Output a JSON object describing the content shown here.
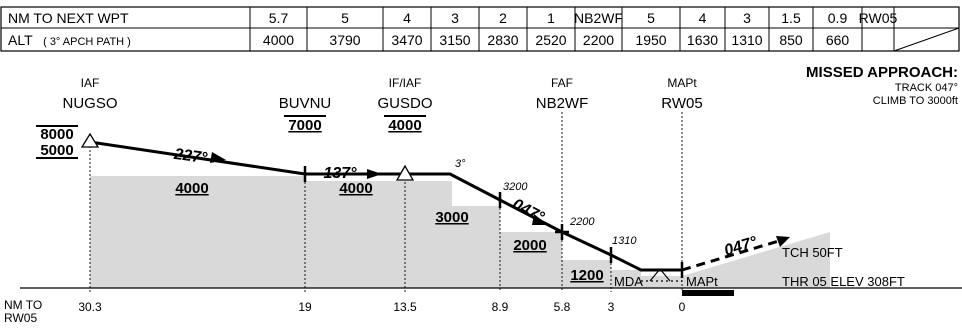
{
  "table": {
    "row1_label": "NM TO NEXT WPT",
    "row1_values": [
      "5.7",
      "5",
      "4",
      "3",
      "2",
      "1",
      "NB2WF",
      "5",
      "4",
      "3",
      "1.5",
      "0.9",
      "RW05"
    ],
    "row2_label": "ALT",
    "row2_sublabel": "( 3° APCH PATH )",
    "row2_values": [
      "4000",
      "3790",
      "3470",
      "3150",
      "2830",
      "2520",
      "2200",
      "1950",
      "1630",
      "1310",
      "850",
      "660",
      ""
    ]
  },
  "missed_approach": {
    "title": "MISSED APPROACH:",
    "line1": "TRACK 047°",
    "line2": "CLIMB TO 3000ft"
  },
  "fixes": [
    {
      "id": "nugso",
      "role": "IAF",
      "name": "NUGSO",
      "alt_top": "8000",
      "alt_bottom": "5000"
    },
    {
      "id": "buvnu",
      "role": "",
      "name": "BUVNU",
      "alt_top": "7000",
      "alt_bottom": ""
    },
    {
      "id": "gusdo",
      "role": "IF/IAF",
      "name": "GUSDO",
      "alt_top": "4000",
      "alt_bottom": ""
    },
    {
      "id": "nb2wf",
      "role": "FAF",
      "name": "NB2WF",
      "alt_top": "",
      "alt_bottom": ""
    },
    {
      "id": "rw05",
      "role": "MAPt",
      "name": "RW05",
      "alt_top": "",
      "alt_bottom": ""
    }
  ],
  "segments": {
    "courses": [
      "227°",
      "137°",
      "047°",
      "047°"
    ],
    "min_altitudes": [
      "4000",
      "4000",
      "3000",
      "2000",
      "1200"
    ],
    "glide_angle": "3°",
    "altitude_marks": [
      "3200",
      "2200",
      "1310"
    ]
  },
  "labels": {
    "mda": "MDA",
    "mapt": "MAPt",
    "tch": "TCH 50FT",
    "threshold": "THR 05 ELEV 308FT"
  },
  "distance_axis": {
    "label_line1": "NM TO",
    "label_line2": "RW05",
    "ticks": [
      "30.3",
      "19",
      "13.5",
      "8.9",
      "5.8",
      "3",
      "0"
    ]
  },
  "colors": {
    "terrain": "#d9d9d9",
    "line": "#000000"
  }
}
